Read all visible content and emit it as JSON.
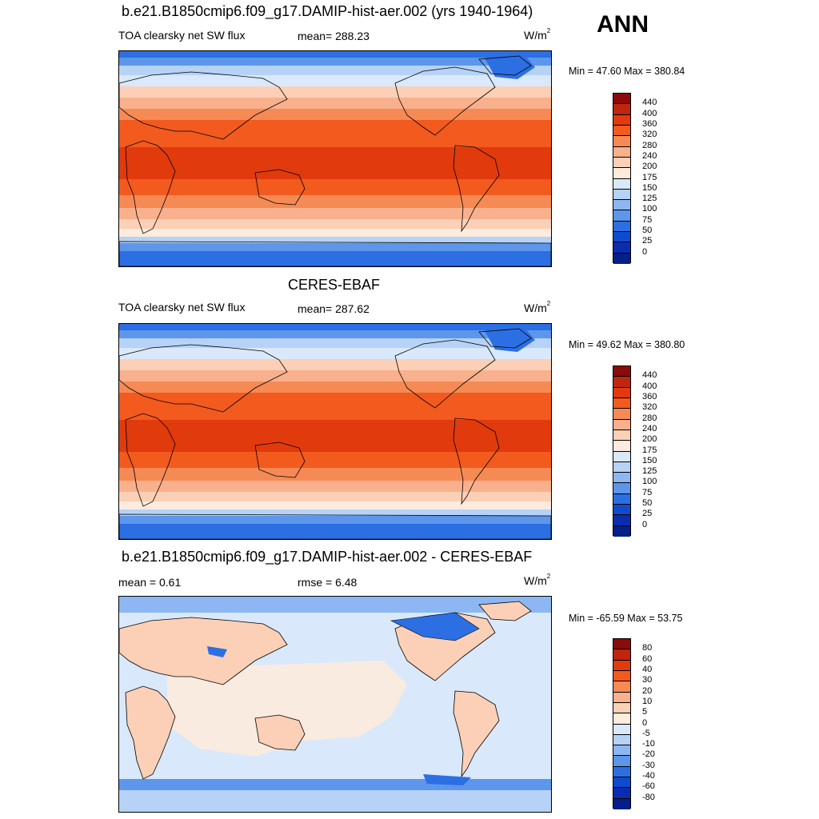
{
  "season": "ANN",
  "panels": [
    {
      "title": "b.e21.B1850cmip6.f09_g17.DAMIP-hist-aer.002 (yrs 1940-1964)",
      "left_label": "TOA clearsky net SW flux",
      "stat1": "mean= 288.23",
      "stat2": "",
      "units": "W/m",
      "units_sup": "2",
      "minmax": "Min =  47.60 Max = 380.84",
      "map_kind": "field"
    },
    {
      "title": "CERES-EBAF",
      "left_label": "TOA clearsky net SW flux",
      "stat1": "mean= 287.62",
      "stat2": "",
      "units": "W/m",
      "units_sup": "2",
      "minmax": "Min =  49.62 Max = 380.80",
      "map_kind": "field"
    },
    {
      "title": "b.e21.B1850cmip6.f09_g17.DAMIP-hist-aer.002 - CERES-EBAF",
      "left_label": "mean =   0.61",
      "stat1": "rmse =   6.48",
      "stat2": "",
      "units": "W/m",
      "units_sup": "2",
      "minmax": "Min = -65.59 Max =  53.75",
      "map_kind": "diff"
    }
  ],
  "colorbar_field": {
    "labels": [
      "440",
      "400",
      "360",
      "320",
      "280",
      "240",
      "200",
      "175",
      "150",
      "125",
      "100",
      "75",
      "50",
      "25",
      "0"
    ],
    "colors": [
      "#8b0a0a",
      "#c0250d",
      "#e13a0d",
      "#f25a1e",
      "#f58a55",
      "#f9b08c",
      "#fbd0b6",
      "#fdebde",
      "#d9e9fb",
      "#b6d2f7",
      "#8db7f2",
      "#5d96eb",
      "#2c6fe3",
      "#0f4bcf",
      "#0a2db0",
      "#051e8a"
    ]
  },
  "colorbar_diff": {
    "labels": [
      "80",
      "60",
      "40",
      "30",
      "20",
      "10",
      "5",
      "0",
      "-5",
      "-10",
      "-20",
      "-30",
      "-40",
      "-60",
      "-80"
    ],
    "colors": [
      "#8b0a0a",
      "#c0250d",
      "#e13a0d",
      "#f25a1e",
      "#f58a55",
      "#f9b08c",
      "#fbd0b6",
      "#fdebde",
      "#d9e9fb",
      "#b6d2f7",
      "#8db7f2",
      "#5d96eb",
      "#2c6fe3",
      "#0f4bcf",
      "#0a2db0",
      "#051e8a"
    ]
  }
}
